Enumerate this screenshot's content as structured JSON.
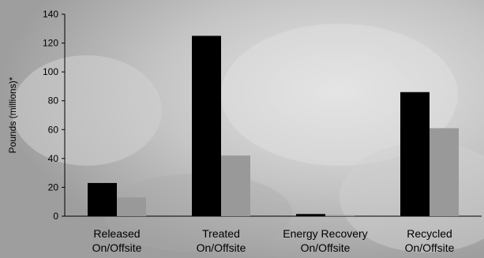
{
  "chart_data": {
    "type": "bar",
    "title": "",
    "xlabel": "",
    "ylabel": "Pounds (millions)*",
    "ylim": [
      0,
      140
    ],
    "yticks": [
      0,
      20,
      40,
      60,
      80,
      100,
      120,
      140
    ],
    "grid": false,
    "categories": [
      [
        "Released",
        "On/Offsite"
      ],
      [
        "Treated",
        "On/Offsite"
      ],
      [
        "Energy Recovery",
        "On/Offsite"
      ],
      [
        "Recycled",
        "On/Offsite"
      ]
    ],
    "series": [
      {
        "values": [
          23,
          125,
          1.5,
          86
        ],
        "color": "#000000"
      },
      {
        "values": [
          13,
          42,
          0.8,
          61
        ],
        "color": "#999999"
      }
    ]
  },
  "colors": {
    "axis": "#000000",
    "background": "#bdbdbd"
  }
}
